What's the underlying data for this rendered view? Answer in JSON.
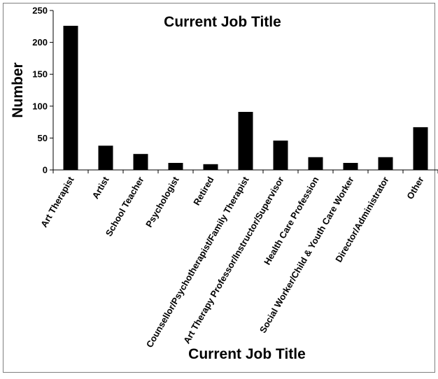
{
  "chart_data": {
    "type": "bar",
    "title": "Current Job Title",
    "xlabel": "Current Job Title",
    "ylabel": "Number",
    "categories": [
      "Art Therapist",
      "Artist",
      "School Teacher",
      "Psychologist",
      "Retired",
      "Counsellor/Psychotherapist/Family Therapist",
      "Art Therapy Professor/Instructor/Supervisor",
      "Health Care Profession",
      "Social Worker/Child & Youth Care Worker",
      "Director/Administrator",
      "Other"
    ],
    "values": [
      226,
      38,
      25,
      11,
      9,
      91,
      46,
      20,
      11,
      20,
      67
    ],
    "ylim": [
      0,
      250
    ],
    "yticks": [
      "0",
      "50",
      "100",
      "150",
      "200",
      "250"
    ],
    "grid": false,
    "legend": "none",
    "bar_color": "#000000"
  }
}
